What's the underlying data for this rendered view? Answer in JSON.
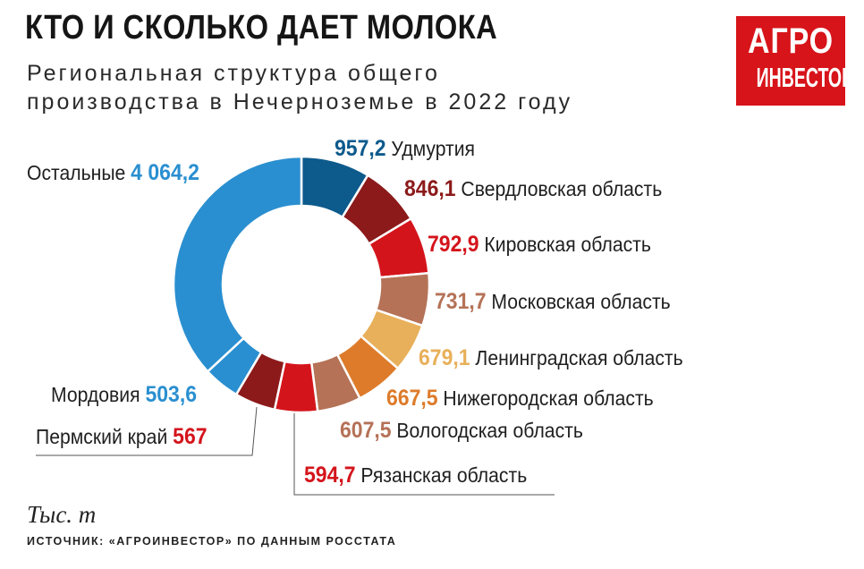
{
  "header": {
    "title": "КТО И СКОЛЬКО ДАЕТ МОЛОКА",
    "subtitle_line1": "Региональная структура общего",
    "subtitle_line2": "производства в Нечерноземье в 2022 году"
  },
  "logo": {
    "line1": "АГРО",
    "line2": "ИНВЕСТОР"
  },
  "chart_data": {
    "type": "pie",
    "variant": "donut",
    "unit": "Тыс. т",
    "slices": [
      {
        "name": "Удмуртия",
        "label": "957,2",
        "value": 957.2,
        "color": "#0d5a8c",
        "label_color": "#0d5a8c"
      },
      {
        "name": "Свердловская область",
        "label": "846,1",
        "value": 846.1,
        "color": "#8c1a1a",
        "label_color": "#8c1a1a"
      },
      {
        "name": "Кировская область",
        "label": "792,9",
        "value": 792.9,
        "color": "#d4141b",
        "label_color": "#d4141b"
      },
      {
        "name": "Московская область",
        "label": "731,7",
        "value": 731.7,
        "color": "#b57257",
        "label_color": "#b57257"
      },
      {
        "name": "Ленинградская область",
        "label": "679,1",
        "value": 679.1,
        "color": "#e8b05a",
        "label_color": "#e8b05a"
      },
      {
        "name": "Нижегородская область",
        "label": "667,5",
        "value": 667.5,
        "color": "#dd7b2a",
        "label_color": "#dd7b2a"
      },
      {
        "name": "Вологодская область",
        "label": "607,5",
        "value": 607.5,
        "color": "#b57257",
        "label_color": "#b57257"
      },
      {
        "name": "Рязанская область",
        "label": "594,7",
        "value": 594.7,
        "color": "#d4141b",
        "label_color": "#d4141b"
      },
      {
        "name": "Пермский край",
        "label": "567",
        "value": 567,
        "color": "#8c1a1a",
        "label_color": "#d4141b"
      },
      {
        "name": "Мордовия",
        "label": "503,6",
        "value": 503.6,
        "color": "#2a8fd0",
        "label_color": "#2a8fd0"
      },
      {
        "name": "Остальные",
        "label": "4 064,2",
        "value": 4064.2,
        "color": "#2a8fd0",
        "label_color": "#2a8fd0"
      }
    ]
  },
  "footer": {
    "unit_label": "Тыс. т",
    "source": "ИСТОЧНИК: «АГРОИНВЕСТОР» ПО ДАННЫМ РОССТАТА"
  }
}
